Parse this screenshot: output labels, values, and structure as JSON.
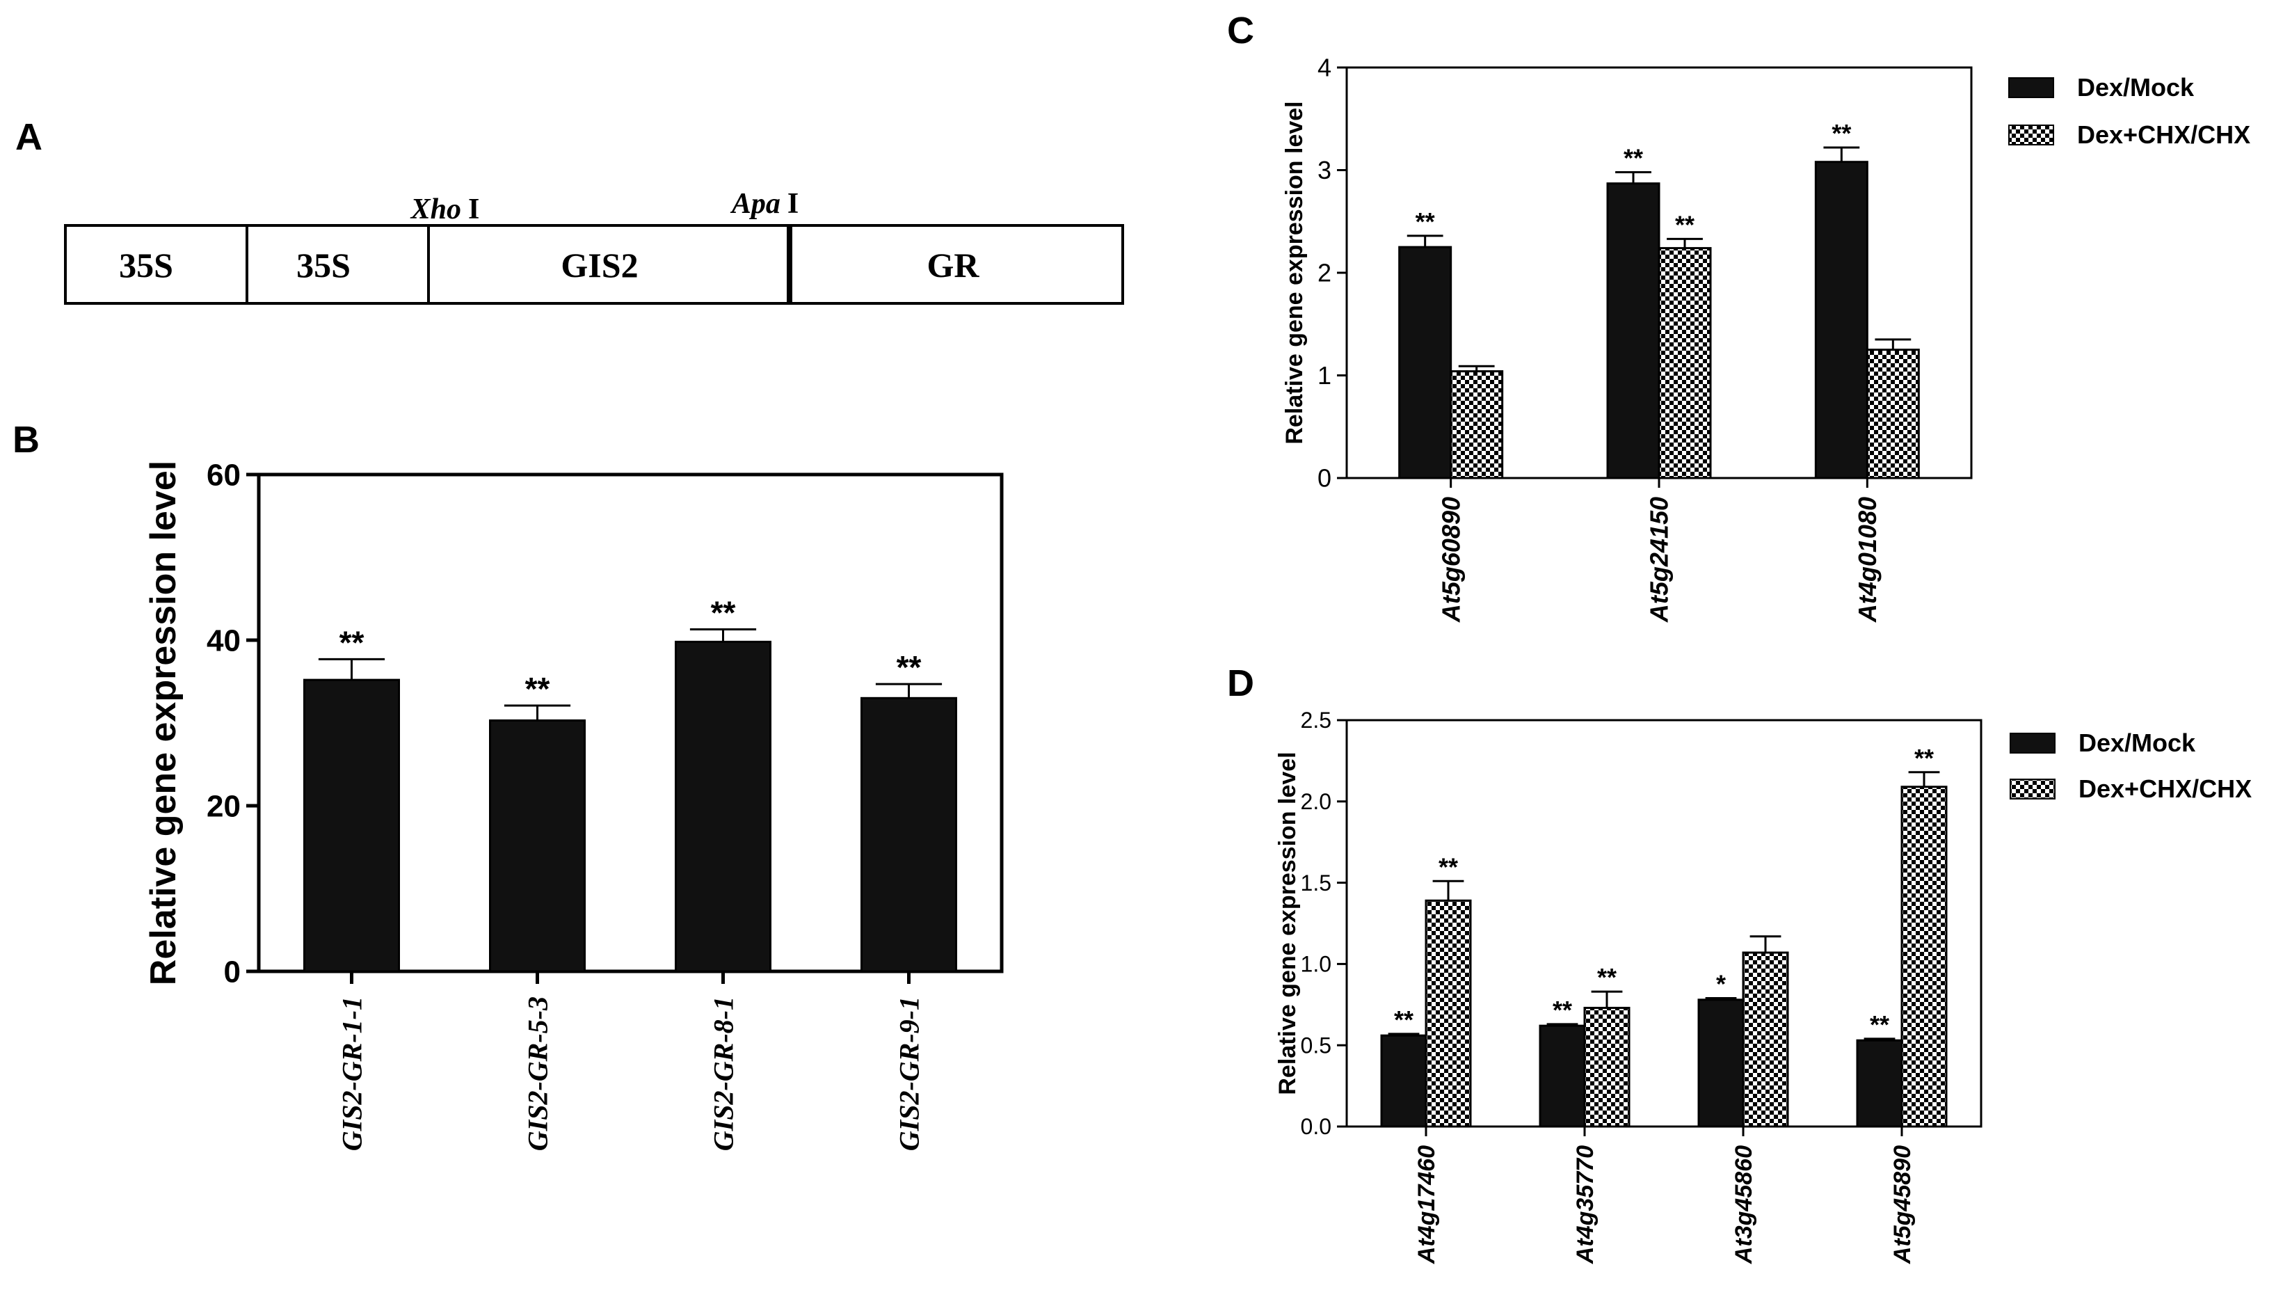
{
  "panels": {
    "a": {
      "letter": "A",
      "segments": [
        "35S",
        "35S",
        "GIS2",
        "GR"
      ],
      "sites": [
        {
          "italic": "Xho",
          "roman": "I"
        },
        {
          "italic": "Apa",
          "roman": "I"
        }
      ]
    },
    "b": {
      "letter": "B"
    },
    "c": {
      "letter": "C"
    },
    "d": {
      "letter": "D"
    }
  },
  "colors": {
    "bar_dark": "#111111",
    "axis": "#000000",
    "background": "#ffffff"
  },
  "chart_data": [
    {
      "id": "b",
      "type": "bar",
      "title": "",
      "xlabel": "",
      "ylabel": "Relative gene expression level",
      "ylim": [
        0,
        60
      ],
      "yticks": [
        0,
        20,
        40,
        60
      ],
      "categories": [
        "GIS2-GR-1-1",
        "GIS2-GR-5-3",
        "GIS2-GR-8-1",
        "GIS2-GR-9-1"
      ],
      "series": [
        {
          "name": "",
          "pattern": "solid",
          "values": [
            35.2,
            30.3,
            39.8,
            33.0
          ],
          "errors": [
            2.5,
            1.8,
            1.5,
            1.7
          ],
          "annotations": [
            "**",
            "**",
            "**",
            "**"
          ]
        }
      ],
      "legend": null
    },
    {
      "id": "c",
      "type": "bar",
      "title": "",
      "xlabel": "",
      "ylabel": "Relative gene expression level",
      "ylim": [
        0,
        4
      ],
      "yticks": [
        0,
        1,
        2,
        3,
        4
      ],
      "categories": [
        "At5g60890",
        "At5g24150",
        "At4g01080"
      ],
      "series": [
        {
          "name": "Dex/Mock",
          "pattern": "solid",
          "values": [
            2.25,
            2.87,
            3.08
          ],
          "errors": [
            0.11,
            0.11,
            0.14
          ],
          "annotations": [
            "**",
            "**",
            "**"
          ]
        },
        {
          "name": "Dex+CHX/CHX",
          "pattern": "checker",
          "values": [
            1.04,
            2.24,
            1.25
          ],
          "errors": [
            0.05,
            0.09,
            0.1
          ],
          "annotations": [
            "",
            "**",
            ""
          ]
        }
      ],
      "legend": "top-right"
    },
    {
      "id": "d",
      "type": "bar",
      "title": "",
      "xlabel": "",
      "ylabel": "Relative gene expression level",
      "ylim": [
        0,
        2.5
      ],
      "yticks": [
        "0.0",
        "0.5",
        "1.0",
        "1.5",
        "2.0",
        "2.5"
      ],
      "categories": [
        "At4g17460",
        "At4g35770",
        "At3g45860",
        "At5g45890"
      ],
      "series": [
        {
          "name": "Dex/Mock",
          "pattern": "solid",
          "values": [
            0.56,
            0.62,
            0.78,
            0.53
          ],
          "errors": [
            0.01,
            0.01,
            0.01,
            0.01
          ],
          "annotations": [
            "**",
            "**",
            "*",
            "**"
          ]
        },
        {
          "name": "Dex+CHX/CHX",
          "pattern": "checker",
          "values": [
            1.39,
            0.73,
            1.07,
            2.09
          ],
          "errors": [
            0.12,
            0.1,
            0.1,
            0.09
          ],
          "annotations": [
            "**",
            "**",
            "",
            "**"
          ]
        }
      ],
      "legend": "top-right"
    }
  ]
}
